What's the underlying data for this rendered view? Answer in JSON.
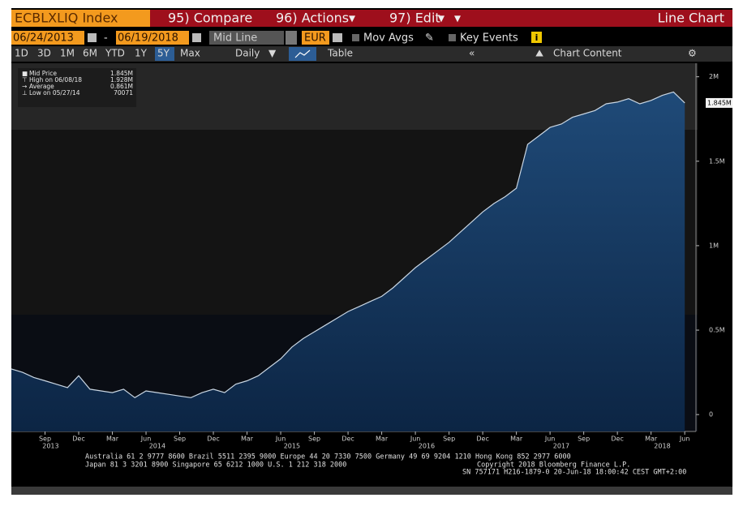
{
  "header": {
    "security": "ECBLXLIQ Index",
    "compare": "95) Compare",
    "actions": "96) Actions",
    "edit": "97) Edit",
    "view": "Line Chart"
  },
  "controls": {
    "start_date": "06/24/2013",
    "end_date": "06/19/2018",
    "field": "Mid Line",
    "currency": "EUR",
    "mov_avgs": "Mov Avgs",
    "key_events": "Key Events",
    "ranges": [
      "1D",
      "3D",
      "1M",
      "6M",
      "YTD",
      "1Y",
      "5Y",
      "Max"
    ],
    "active_range": 6,
    "frequency": "Daily",
    "table": "Table",
    "chart_content": "Chart Content"
  },
  "legend": [
    {
      "label": "Mid Price",
      "value": "1.845M"
    },
    {
      "label": "High on 06/08/18",
      "value": "1.928M"
    },
    {
      "label": "Average",
      "value": "0.861M"
    },
    {
      "label": "Low on 05/27/14",
      "value": "70071"
    }
  ],
  "footer": [
    "Australia 61 2 9777 8600 Brazil 5511 2395 9000 Europe 44 20 7330 7500 Germany 49 69 9204 1210 Hong Kong 852 2977 6000",
    "Japan 81 3 3201 8900       Singapore 65 6212 1000       U.S. 1 212 318 2000",
    "Copyright 2018 Bloomberg Finance L.P.",
    "SN 757171 H216-1879-0 20-Jun-18 18:00:42 CEST GMT+2:00"
  ],
  "chart_data": {
    "type": "area",
    "color": "#c9d6e3",
    "x": [
      "2013-06",
      "2013-07",
      "2013-08",
      "2013-09",
      "2013-10",
      "2013-11",
      "2013-12",
      "2014-01",
      "2014-02",
      "2014-03",
      "2014-04",
      "2014-05",
      "2014-06",
      "2014-07",
      "2014-08",
      "2014-09",
      "2014-10",
      "2014-11",
      "2014-12",
      "2015-01",
      "2015-02",
      "2015-03",
      "2015-04",
      "2015-05",
      "2015-06",
      "2015-07",
      "2015-08",
      "2015-09",
      "2015-10",
      "2015-11",
      "2015-12",
      "2016-01",
      "2016-02",
      "2016-03",
      "2016-04",
      "2016-05",
      "2016-06",
      "2016-07",
      "2016-08",
      "2016-09",
      "2016-10",
      "2016-11",
      "2016-12",
      "2017-01",
      "2017-02",
      "2017-03",
      "2017-04",
      "2017-05",
      "2017-06",
      "2017-07",
      "2017-08",
      "2017-09",
      "2017-10",
      "2017-11",
      "2017-12",
      "2018-01",
      "2018-02",
      "2018-03",
      "2018-04",
      "2018-05",
      "2018-06"
    ],
    "values": [
      270000,
      250000,
      220000,
      200000,
      180000,
      160000,
      230000,
      150000,
      140000,
      130000,
      150000,
      100000,
      140000,
      130000,
      120000,
      110000,
      100000,
      130000,
      150000,
      130000,
      180000,
      200000,
      230000,
      280000,
      330000,
      400000,
      450000,
      490000,
      530000,
      570000,
      610000,
      640000,
      670000,
      700000,
      750000,
      810000,
      870000,
      920000,
      970000,
      1020000,
      1080000,
      1140000,
      1200000,
      1250000,
      1290000,
      1340000,
      1600000,
      1650000,
      1700000,
      1720000,
      1760000,
      1780000,
      1800000,
      1840000,
      1850000,
      1870000,
      1840000,
      1860000,
      1890000,
      1910000,
      1845000
    ],
    "last_label": "1.845M",
    "xlim": [
      "2013-06",
      "2018-07"
    ],
    "xticks": [
      {
        "value": "2013-09",
        "label": "Sep"
      },
      {
        "value": "2013-12",
        "label": "Dec"
      },
      {
        "value": "2014-03",
        "label": "Mar"
      },
      {
        "value": "2014-06",
        "label": "Jun"
      },
      {
        "value": "2014-09",
        "label": "Sep"
      },
      {
        "value": "2014-12",
        "label": "Dec"
      },
      {
        "value": "2015-03",
        "label": "Mar"
      },
      {
        "value": "2015-06",
        "label": "Jun"
      },
      {
        "value": "2015-09",
        "label": "Sep"
      },
      {
        "value": "2015-12",
        "label": "Dec"
      },
      {
        "value": "2016-03",
        "label": "Mar"
      },
      {
        "value": "2016-06",
        "label": "Jun"
      },
      {
        "value": "2016-09",
        "label": "Sep"
      },
      {
        "value": "2016-12",
        "label": "Dec"
      },
      {
        "value": "2017-03",
        "label": "Mar"
      },
      {
        "value": "2017-06",
        "label": "Jun"
      },
      {
        "value": "2017-09",
        "label": "Sep"
      },
      {
        "value": "2017-12",
        "label": "Dec"
      },
      {
        "value": "2018-03",
        "label": "Mar"
      },
      {
        "value": "2018-06",
        "label": "Jun"
      }
    ],
    "year_labels": [
      2013,
      2014,
      2015,
      2016,
      2017,
      2018
    ],
    "ylim": [
      -100000,
      2080000
    ],
    "yticks": [
      0,
      {
        "value": 500000,
        "label": "0.5M"
      },
      {
        "value": 1000000,
        "label": "1M"
      },
      {
        "value": 1500000,
        "label": "1.5M"
      },
      {
        "value": 2000000,
        "label": "2M"
      }
    ]
  }
}
